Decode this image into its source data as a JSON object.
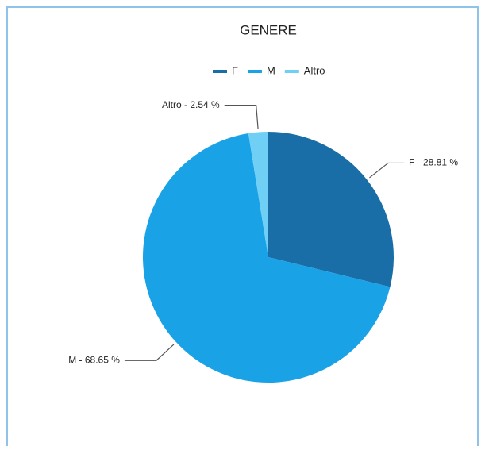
{
  "chart_data": {
    "type": "pie",
    "title": "GENERE",
    "categories": [
      "F",
      "M",
      "Altro"
    ],
    "values": [
      28.81,
      68.65,
      2.54
    ],
    "value_labels": [
      "F - 28.81 %",
      "M - 68.65 %",
      "Altro - 2.54 %"
    ],
    "colors": [
      "#1a6ea8",
      "#19a2e6",
      "#6fcff5"
    ],
    "legend": "top"
  }
}
